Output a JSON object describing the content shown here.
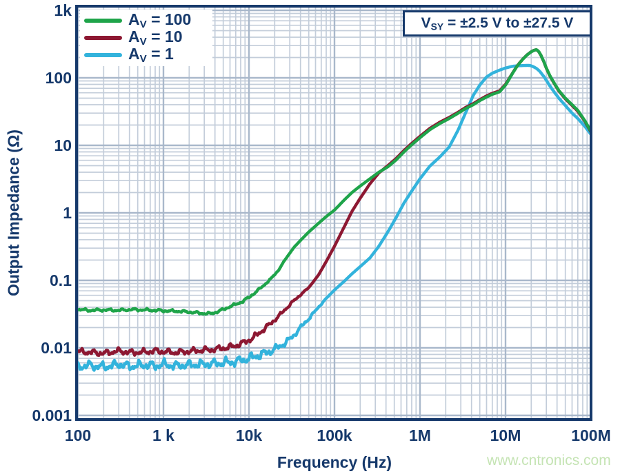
{
  "watermark": "www.cntronics.com",
  "colors": {
    "background": "#FFFFFF",
    "frame": "#16396B",
    "text": "#16396B",
    "grid_minor": "#C3CDDA",
    "grid_major": "#A9B8CB",
    "watermark": "#C5E4B4"
  },
  "chart_data": {
    "type": "line",
    "title": "",
    "xlabel": "Frequency (Hz)",
    "ylabel": "Output Impedance (Ω)",
    "x_scale": "log",
    "y_scale": "log",
    "xlim": [
      100,
      100000000
    ],
    "ylim": [
      0.001,
      1000
    ],
    "grid": "log-log major+minor",
    "legend_position": "top-left",
    "annotation": {
      "prefix": "V",
      "sub": "SY",
      "rest": " = ±2.5 V to ±27.5 V"
    },
    "x_ticks": [
      {
        "f": 100,
        "label": "100"
      },
      {
        "f": 1000,
        "label": "1 k"
      },
      {
        "f": 10000,
        "label": "10k"
      },
      {
        "f": 100000,
        "label": "100k"
      },
      {
        "f": 1000000,
        "label": "1M"
      },
      {
        "f": 10000000,
        "label": "10M"
      },
      {
        "f": 100000000,
        "label": "100M"
      }
    ],
    "y_ticks": [
      {
        "v": 1000,
        "label": "1k"
      },
      {
        "v": 100,
        "label": "100"
      },
      {
        "v": 10,
        "label": "10"
      },
      {
        "v": 1,
        "label": "1"
      },
      {
        "v": 0.1,
        "label": "0.1"
      },
      {
        "v": 0.01,
        "label": "0.01"
      },
      {
        "v": 0.001,
        "label": "0.001"
      }
    ],
    "series": [
      {
        "name": "AV = 100",
        "legend": {
          "prefix": "A",
          "sub": "V",
          "rest": " = 100"
        },
        "color": "#1FA44A",
        "noise": {
          "amp": 0.021,
          "f_full": 9000,
          "f_zero": 40000,
          "seed": 0.4
        },
        "points": [
          [
            100,
            0.037
          ],
          [
            140,
            0.036
          ],
          [
            200,
            0.0365
          ],
          [
            300,
            0.036
          ],
          [
            420,
            0.037
          ],
          [
            600,
            0.0365
          ],
          [
            800,
            0.036
          ],
          [
            1000,
            0.0355
          ],
          [
            1400,
            0.035
          ],
          [
            2000,
            0.034
          ],
          [
            2800,
            0.0325
          ],
          [
            3500,
            0.032
          ],
          [
            4200,
            0.034
          ],
          [
            5000,
            0.037
          ],
          [
            6000,
            0.041
          ],
          [
            7000,
            0.044
          ],
          [
            8500,
            0.049
          ],
          [
            10000,
            0.056
          ],
          [
            12000,
            0.067
          ],
          [
            15000,
            0.085
          ],
          [
            18000,
            0.105
          ],
          [
            22000,
            0.14
          ],
          [
            27000,
            0.21
          ],
          [
            33000,
            0.3
          ],
          [
            40000,
            0.39
          ],
          [
            50000,
            0.52
          ],
          [
            65000,
            0.7
          ],
          [
            80000,
            0.88
          ],
          [
            100000,
            1.1
          ],
          [
            130000,
            1.55
          ],
          [
            160000,
            2.0
          ],
          [
            200000,
            2.5
          ],
          [
            260000,
            3.2
          ],
          [
            330000,
            4.0
          ],
          [
            420000,
            4.8
          ],
          [
            520000,
            6.0
          ],
          [
            650000,
            8.0
          ],
          [
            800000,
            10.2
          ],
          [
            1000000,
            13
          ],
          [
            1300000,
            17
          ],
          [
            1700000,
            21
          ],
          [
            2200000,
            25
          ],
          [
            2800000,
            30
          ],
          [
            3400000,
            35
          ],
          [
            4200000,
            40
          ],
          [
            5000000,
            46
          ],
          [
            6000000,
            52
          ],
          [
            7000000,
            57
          ],
          [
            8500000,
            62
          ],
          [
            10000000,
            78
          ],
          [
            11000000,
            95
          ],
          [
            12000000,
            115
          ],
          [
            13000000,
            135
          ],
          [
            14000000,
            155
          ],
          [
            16000000,
            190
          ],
          [
            18000000,
            220
          ],
          [
            20000000,
            243
          ],
          [
            21500000,
            255
          ],
          [
            23000000,
            262
          ],
          [
            24500000,
            245
          ],
          [
            26000000,
            215
          ],
          [
            28000000,
            175
          ],
          [
            30000000,
            140
          ],
          [
            33000000,
            108
          ],
          [
            37000000,
            84
          ],
          [
            42000000,
            65
          ],
          [
            50000000,
            50
          ],
          [
            60000000,
            40
          ],
          [
            70000000,
            33
          ],
          [
            85000000,
            23
          ],
          [
            100000000,
            16
          ]
        ]
      },
      {
        "name": "AV = 10",
        "legend": {
          "prefix": "A",
          "sub": "V",
          "rest": " = 10"
        },
        "color": "#8D1832",
        "noise": {
          "amp": 0.05,
          "f_full": 12000,
          "f_zero": 60000,
          "seed": 2.1
        },
        "points": [
          [
            100,
            0.0088
          ],
          [
            140,
            0.0086
          ],
          [
            200,
            0.0083
          ],
          [
            300,
            0.009
          ],
          [
            420,
            0.0085
          ],
          [
            600,
            0.0087
          ],
          [
            800,
            0.009
          ],
          [
            1000,
            0.0088
          ],
          [
            1400,
            0.0085
          ],
          [
            2000,
            0.0089
          ],
          [
            2800,
            0.0092
          ],
          [
            3500,
            0.0094
          ],
          [
            4200,
            0.0096
          ],
          [
            5000,
            0.0099
          ],
          [
            6000,
            0.0103
          ],
          [
            7000,
            0.0108
          ],
          [
            8500,
            0.0118
          ],
          [
            10000,
            0.013
          ],
          [
            12000,
            0.015
          ],
          [
            15000,
            0.019
          ],
          [
            18000,
            0.023
          ],
          [
            22000,
            0.029
          ],
          [
            27000,
            0.038
          ],
          [
            33000,
            0.049
          ],
          [
            40000,
            0.061
          ],
          [
            50000,
            0.078
          ],
          [
            65000,
            0.12
          ],
          [
            80000,
            0.19
          ],
          [
            100000,
            0.32
          ],
          [
            130000,
            0.62
          ],
          [
            160000,
            1.05
          ],
          [
            200000,
            1.65
          ],
          [
            260000,
            2.7
          ],
          [
            330000,
            3.9
          ],
          [
            420000,
            5.0
          ],
          [
            520000,
            6.3
          ],
          [
            650000,
            8.4
          ],
          [
            800000,
            10.7
          ],
          [
            1000000,
            13.6
          ],
          [
            1300000,
            17.8
          ],
          [
            1700000,
            22
          ],
          [
            2200000,
            26
          ],
          [
            2800000,
            31
          ],
          [
            3400000,
            36.3
          ],
          [
            4200000,
            41.5
          ],
          [
            5000000,
            47.5
          ],
          [
            6000000,
            54
          ],
          [
            7000000,
            59
          ],
          [
            8500000,
            64
          ],
          [
            10000000,
            80
          ],
          [
            11000000,
            97
          ],
          [
            12000000,
            116
          ],
          [
            13000000,
            136
          ],
          [
            14000000,
            156
          ],
          [
            16000000,
            191
          ],
          [
            18000000,
            221
          ],
          [
            20000000,
            244
          ],
          [
            21500000,
            256
          ],
          [
            23000000,
            261
          ],
          [
            24500000,
            244
          ],
          [
            26000000,
            214
          ],
          [
            28000000,
            174
          ],
          [
            30000000,
            139
          ],
          [
            33000000,
            107
          ],
          [
            37000000,
            83
          ],
          [
            42000000,
            64
          ],
          [
            50000000,
            49
          ],
          [
            60000000,
            39
          ],
          [
            70000000,
            32
          ],
          [
            85000000,
            22.5
          ],
          [
            100000000,
            15.7
          ]
        ]
      },
      {
        "name": "AV = 1",
        "legend": {
          "prefix": "A",
          "sub": "V",
          "rest": " = 1"
        },
        "color": "#33B3DC",
        "noise": {
          "amp": 0.075,
          "f_full": 15000,
          "f_zero": 90000,
          "seed": 4.2
        },
        "points": [
          [
            100,
            0.0053
          ],
          [
            140,
            0.0055
          ],
          [
            200,
            0.0052
          ],
          [
            300,
            0.0057
          ],
          [
            420,
            0.0053
          ],
          [
            600,
            0.0056
          ],
          [
            800,
            0.0054
          ],
          [
            1000,
            0.0057
          ],
          [
            1400,
            0.0054
          ],
          [
            2000,
            0.0056
          ],
          [
            2800,
            0.0057
          ],
          [
            3500,
            0.0058
          ],
          [
            4200,
            0.0059
          ],
          [
            5000,
            0.006
          ],
          [
            6000,
            0.0061
          ],
          [
            7000,
            0.0063
          ],
          [
            8500,
            0.0066
          ],
          [
            10000,
            0.007
          ],
          [
            12000,
            0.0075
          ],
          [
            15000,
            0.0082
          ],
          [
            18000,
            0.009
          ],
          [
            22000,
            0.0102
          ],
          [
            27000,
            0.012
          ],
          [
            33000,
            0.015
          ],
          [
            40000,
            0.02
          ],
          [
            50000,
            0.027
          ],
          [
            65000,
            0.04
          ],
          [
            80000,
            0.054
          ],
          [
            100000,
            0.072
          ],
          [
            130000,
            0.097
          ],
          [
            160000,
            0.125
          ],
          [
            200000,
            0.16
          ],
          [
            260000,
            0.215
          ],
          [
            330000,
            0.32
          ],
          [
            420000,
            0.52
          ],
          [
            520000,
            0.83
          ],
          [
            650000,
            1.4
          ],
          [
            800000,
            2.1
          ],
          [
            1000000,
            3.2
          ],
          [
            1300000,
            4.9
          ],
          [
            1700000,
            6.7
          ],
          [
            2200000,
            9.5
          ],
          [
            2800000,
            17
          ],
          [
            3400000,
            30
          ],
          [
            4200000,
            55
          ],
          [
            5000000,
            78
          ],
          [
            6000000,
            103
          ],
          [
            7000000,
            117
          ],
          [
            8500000,
            130
          ],
          [
            10000000,
            140
          ],
          [
            12000000,
            148
          ],
          [
            14000000,
            151
          ],
          [
            16000000,
            152
          ],
          [
            18000000,
            153
          ],
          [
            19500000,
            152
          ],
          [
            21000000,
            147
          ],
          [
            23000000,
            138
          ],
          [
            25000000,
            126
          ],
          [
            28000000,
            105
          ],
          [
            30000000,
            92
          ],
          [
            33000000,
            76
          ],
          [
            37000000,
            62
          ],
          [
            42000000,
            50
          ],
          [
            50000000,
            39
          ],
          [
            60000000,
            30
          ],
          [
            70000000,
            25
          ],
          [
            85000000,
            19
          ],
          [
            100000000,
            14.5
          ]
        ]
      }
    ]
  }
}
